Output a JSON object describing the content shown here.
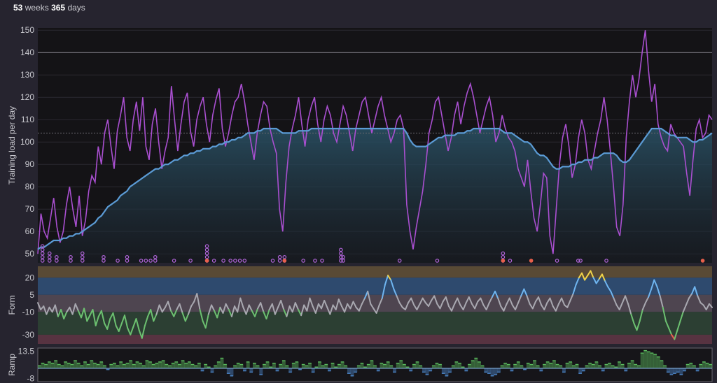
{
  "header": {
    "weeks_value": "53",
    "weeks_label": "weeks",
    "days_value": "365",
    "days_label": "days"
  },
  "chart_data": [
    {
      "type": "line",
      "ylabel": "Training load per day",
      "ylim": [
        46,
        151
      ],
      "yticks": [
        "150",
        "140",
        "130",
        "120",
        "110",
        "100",
        "90",
        "80",
        "70",
        "60",
        "50"
      ],
      "reference_line": 140,
      "series": [
        {
          "color": "#a94fd0",
          "values": [
            50,
            68,
            60,
            57,
            66,
            75,
            62,
            55,
            60,
            72,
            80,
            70,
            62,
            76,
            58,
            65,
            78,
            85,
            82,
            98,
            90,
            104,
            110,
            98,
            88,
            105,
            112,
            120,
            102,
            96,
            110,
            118,
            105,
            120,
            98,
            92,
            108,
            115,
            100,
            88,
            96,
            102,
            125,
            110,
            96,
            108,
            118,
            122,
            105,
            98,
            110,
            116,
            120,
            108,
            100,
            112,
            119,
            124,
            106,
            98,
            104,
            112,
            118,
            120,
            126,
            118,
            108,
            100,
            92,
            104,
            112,
            118,
            116,
            106,
            100,
            95,
            70,
            60,
            82,
            98,
            106,
            112,
            120,
            108,
            98,
            110,
            116,
            120,
            108,
            100,
            110,
            116,
            112,
            104,
            100,
            108,
            116,
            112,
            104,
            96,
            106,
            112,
            118,
            120,
            112,
            104,
            110,
            116,
            120,
            112,
            106,
            100,
            104,
            110,
            112,
            106,
            72,
            60,
            52,
            62,
            70,
            78,
            90,
            104,
            110,
            118,
            120,
            112,
            104,
            96,
            102,
            112,
            118,
            108,
            116,
            122,
            126,
            120,
            112,
            104,
            110,
            116,
            120,
            112,
            100,
            104,
            112,
            106,
            102,
            100,
            96,
            88,
            84,
            80,
            92,
            78,
            66,
            60,
            72,
            86,
            84,
            58,
            50,
            70,
            90,
            102,
            108,
            98,
            84,
            90,
            102,
            110,
            104,
            92,
            88,
            96,
            104,
            110,
            120,
            110,
            96,
            80,
            62,
            58,
            72,
            102,
            118,
            130,
            120,
            128,
            140,
            150,
            132,
            118,
            126,
            108,
            102,
            98,
            96,
            108,
            104,
            102,
            100,
            98,
            86,
            76,
            92,
            106,
            110,
            102,
            104,
            112,
            110
          ]
        },
        {
          "color": "#5b9bd5",
          "fill": true,
          "values": [
            52,
            53,
            53,
            54,
            55,
            56,
            56,
            56,
            57,
            57,
            58,
            58,
            59,
            59,
            60,
            61,
            62,
            63,
            64,
            66,
            67,
            69,
            71,
            72,
            73,
            74,
            76,
            77,
            78,
            80,
            81,
            82,
            83,
            84,
            85,
            86,
            87,
            88,
            88,
            89,
            90,
            90,
            91,
            92,
            92,
            93,
            94,
            94,
            95,
            95,
            96,
            96,
            97,
            97,
            97,
            98,
            98,
            99,
            99,
            100,
            100,
            101,
            101,
            102,
            102,
            103,
            104,
            104,
            104,
            105,
            105,
            106,
            106,
            106,
            106,
            106,
            105,
            104,
            104,
            104,
            104,
            104,
            105,
            105,
            105,
            105,
            106,
            106,
            106,
            106,
            106,
            106,
            106,
            106,
            106,
            106,
            106,
            106,
            106,
            106,
            106,
            106,
            106,
            106,
            106,
            106,
            106,
            106,
            106,
            106,
            106,
            106,
            106,
            106,
            106,
            106,
            104,
            101,
            99,
            98,
            98,
            98,
            98,
            99,
            100,
            101,
            102,
            102,
            103,
            103,
            103,
            103,
            104,
            104,
            104,
            105,
            105,
            106,
            106,
            106,
            106,
            106,
            106,
            106,
            106,
            106,
            105,
            104,
            104,
            104,
            103,
            102,
            101,
            100,
            100,
            99,
            97,
            95,
            94,
            94,
            93,
            91,
            89,
            88,
            88,
            89,
            89,
            89,
            90,
            90,
            91,
            91,
            92,
            92,
            92,
            93,
            93,
            94,
            95,
            95,
            95,
            95,
            94,
            92,
            91,
            91,
            92,
            94,
            96,
            98,
            100,
            102,
            104,
            106,
            106,
            106,
            106,
            105,
            104,
            103,
            103,
            102,
            102,
            102,
            102,
            101,
            100,
            100,
            101,
            101,
            102,
            103,
            104
          ]
        }
      ],
      "markers": [
        {
          "x": 2,
          "count": 5,
          "color": "#b064d8"
        },
        {
          "x": 5,
          "count": 3,
          "color": "#b064d8"
        },
        {
          "x": 8,
          "count": 2,
          "color": "#b064d8"
        },
        {
          "x": 14,
          "count": 2,
          "color": "#b064d8"
        },
        {
          "x": 19,
          "count": 3,
          "color": "#b064d8"
        },
        {
          "x": 28,
          "count": 2,
          "color": "#b064d8"
        },
        {
          "x": 34,
          "count": 1,
          "color": "#b064d8"
        },
        {
          "x": 38,
          "count": 2,
          "color": "#b064d8"
        },
        {
          "x": 44,
          "count": 1,
          "color": "#b064d8"
        },
        {
          "x": 46,
          "count": 1,
          "color": "#b064d8"
        },
        {
          "x": 48,
          "count": 1,
          "color": "#b064d8"
        },
        {
          "x": 50,
          "count": 2,
          "color": "#b064d8"
        },
        {
          "x": 58,
          "count": 1,
          "color": "#b064d8"
        },
        {
          "x": 65,
          "count": 1,
          "color": "#b064d8"
        },
        {
          "x": 72,
          "count": 5,
          "color": "#b064d8"
        },
        {
          "x": 72,
          "count": 1,
          "color": "#e8604c"
        },
        {
          "x": 75,
          "count": 1,
          "color": "#b064d8"
        },
        {
          "x": 79,
          "count": 1,
          "color": "#b064d8"
        },
        {
          "x": 82,
          "count": 1,
          "color": "#b064d8"
        },
        {
          "x": 84,
          "count": 1,
          "color": "#b064d8"
        },
        {
          "x": 86,
          "count": 1,
          "color": "#b064d8"
        },
        {
          "x": 88,
          "count": 1,
          "color": "#b064d8"
        },
        {
          "x": 100,
          "count": 1,
          "color": "#b064d8"
        },
        {
          "x": 103,
          "count": 2,
          "color": "#b064d8"
        },
        {
          "x": 105,
          "count": 2,
          "color": "#b064d8"
        },
        {
          "x": 105,
          "count": 1,
          "color": "#e8604c"
        },
        {
          "x": 113,
          "count": 1,
          "color": "#b064d8"
        },
        {
          "x": 118,
          "count": 1,
          "color": "#b064d8"
        },
        {
          "x": 121,
          "count": 1,
          "color": "#b064d8"
        },
        {
          "x": 129,
          "count": 4,
          "color": "#b064d8"
        },
        {
          "x": 130,
          "count": 2,
          "color": "#b064d8"
        },
        {
          "x": 154,
          "count": 1,
          "color": "#b064d8"
        },
        {
          "x": 170,
          "count": 1,
          "color": "#b064d8"
        },
        {
          "x": 198,
          "count": 3,
          "color": "#b064d8"
        },
        {
          "x": 198,
          "count": 1,
          "color": "#e8604c"
        },
        {
          "x": 201,
          "count": 1,
          "color": "#b064d8"
        },
        {
          "x": 210,
          "count": 1,
          "color": "#e8604c"
        },
        {
          "x": 221,
          "count": 1,
          "color": "#b064d8"
        },
        {
          "x": 230,
          "count": 1,
          "color": "#b064d8"
        },
        {
          "x": 231,
          "count": 1,
          "color": "#b064d8"
        },
        {
          "x": 242,
          "count": 1,
          "color": "#b064d8"
        },
        {
          "x": 283,
          "count": 1,
          "color": "#e8604c"
        }
      ]
    },
    {
      "type": "line",
      "ylabel": "Form",
      "ylim": [
        -38,
        30
      ],
      "yticks": [
        "20",
        "5",
        "-10",
        "-30"
      ],
      "bands": [
        {
          "from": 20,
          "to": 30,
          "color": "#594a35"
        },
        {
          "from": 5,
          "to": 20,
          "color": "#2e4a6e"
        },
        {
          "from": -10,
          "to": 5,
          "color": "#4e4550"
        },
        {
          "from": -30,
          "to": -10,
          "color": "#2c3f33"
        },
        {
          "from": -38,
          "to": -30,
          "color": "#573341"
        }
      ],
      "color_zones": [
        {
          "above": 20,
          "color": "#f0d34a"
        },
        {
          "above": 5,
          "color": "#6fb5f0"
        },
        {
          "above": -10,
          "color": "#a8a8b0"
        },
        {
          "above": -30,
          "color": "#6cc070"
        },
        {
          "above": -100,
          "color": "#e8604c"
        }
      ],
      "values": [
        -2,
        -8,
        -5,
        -12,
        -6,
        -10,
        -4,
        -14,
        -8,
        -16,
        -10,
        -6,
        -12,
        -3,
        -9,
        -15,
        -7,
        -18,
        -13,
        -8,
        -22,
        -14,
        -9,
        -20,
        -25,
        -16,
        -11,
        -22,
        -27,
        -20,
        -13,
        -24,
        -30,
        -23,
        -16,
        -26,
        -33,
        -22,
        -14,
        -8,
        -18,
        -12,
        -4,
        -10,
        -6,
        -1,
        -9,
        -14,
        -8,
        -3,
        -11,
        -18,
        -12,
        -5,
        -1,
        6,
        -8,
        -18,
        -24,
        -12,
        -4,
        -9,
        -15,
        -6,
        -11,
        -3,
        -8,
        -14,
        -5,
        -10,
        2,
        -6,
        -12,
        -4,
        -9,
        -14,
        -7,
        -2,
        -10,
        -16,
        -8,
        -3,
        -12,
        -6,
        0,
        -8,
        -14,
        -5,
        -10,
        -2,
        -8,
        -13,
        -4,
        -9,
        2,
        -5,
        -11,
        -3,
        -7,
        0,
        -6,
        -12,
        -4,
        -8,
        1,
        -5,
        -10,
        -3,
        -7,
        -1,
        -6,
        -9,
        -3,
        2,
        8,
        -3,
        -7,
        -11,
        -4,
        2,
        14,
        22,
        18,
        10,
        4,
        -2,
        -6,
        -8,
        -2,
        2,
        -4,
        -8,
        -3,
        2,
        -2,
        -5,
        0,
        4,
        -3,
        -7,
        -1,
        3,
        -5,
        -9,
        -3,
        2,
        -4,
        -8,
        -2,
        3,
        -3,
        -7,
        -1,
        2,
        -4,
        -8,
        -2,
        3,
        8,
        2,
        -5,
        -9,
        -3,
        2,
        -4,
        -8,
        -2,
        4,
        10,
        4,
        -3,
        -7,
        -1,
        3,
        -4,
        -8,
        -2,
        2,
        -5,
        -9,
        -3,
        2,
        -4,
        -6,
        0,
        6,
        14,
        20,
        24,
        18,
        22,
        26,
        20,
        15,
        19,
        23,
        17,
        12,
        8,
        2,
        -4,
        -8,
        -2,
        4,
        -3,
        -12,
        -20,
        -26,
        -18,
        -8,
        -2,
        3,
        10,
        18,
        12,
        4,
        -6,
        -18,
        -24,
        -30,
        -34,
        -26,
        -18,
        -10,
        -4,
        2,
        6,
        12,
        4,
        -2,
        -4,
        -8,
        -3,
        -6
      ]
    },
    {
      "type": "bar",
      "ylabel": "Ramp",
      "ylim": [
        -8,
        13.5
      ],
      "yticks": [
        "13.5",
        "-8"
      ],
      "colors": {
        "positive": "#5bbb5e",
        "negative": "#4b86c9"
      },
      "values": [
        2,
        4,
        3,
        5,
        4,
        6,
        3,
        2,
        5,
        4,
        3,
        6,
        4,
        2,
        5,
        3,
        6,
        4,
        3,
        5,
        2,
        -1,
        3,
        4,
        2,
        5,
        3,
        4,
        6,
        3,
        5,
        4,
        2,
        6,
        5,
        3,
        4,
        5,
        6,
        3,
        2,
        4,
        5,
        3,
        6,
        4,
        5,
        3,
        2,
        4,
        -2,
        3,
        1,
        -3,
        2,
        5,
        8,
        3,
        -4,
        -6,
        2,
        4,
        3,
        -2,
        5,
        -3,
        4,
        2,
        -5,
        3,
        5,
        1,
        4,
        -2,
        3,
        6,
        2,
        -3,
        4,
        5,
        -1,
        3,
        2,
        4,
        -3,
        1,
        5,
        2,
        3,
        -2,
        4,
        1,
        3,
        5,
        2,
        -4,
        -6,
        -3,
        2,
        4,
        1,
        3,
        6,
        2,
        -2,
        4,
        3,
        5,
        2,
        -3,
        4,
        6,
        3,
        1,
        -2,
        3,
        5,
        2,
        -3,
        -5,
        -2,
        2,
        4,
        3,
        -4,
        -6,
        -3,
        2,
        5,
        4,
        1,
        -2,
        3,
        6,
        8,
        5,
        2,
        -3,
        -4,
        -6,
        -5,
        -3,
        2,
        4,
        3,
        -2,
        3,
        5,
        2,
        -1,
        4,
        3,
        6,
        2,
        -2,
        3,
        5,
        4,
        6,
        3,
        2,
        -3,
        4,
        5,
        2,
        3,
        -4,
        -2,
        2,
        4,
        3,
        5,
        2,
        -2,
        3,
        4,
        2,
        1,
        5,
        3,
        -2,
        4,
        6,
        3,
        2,
        12,
        14,
        13,
        12,
        11,
        9,
        6,
        2,
        -3,
        -5,
        -4,
        -3,
        -5,
        -2,
        3,
        4,
        2,
        -2,
        3,
        5,
        4,
        3
      ]
    }
  ]
}
